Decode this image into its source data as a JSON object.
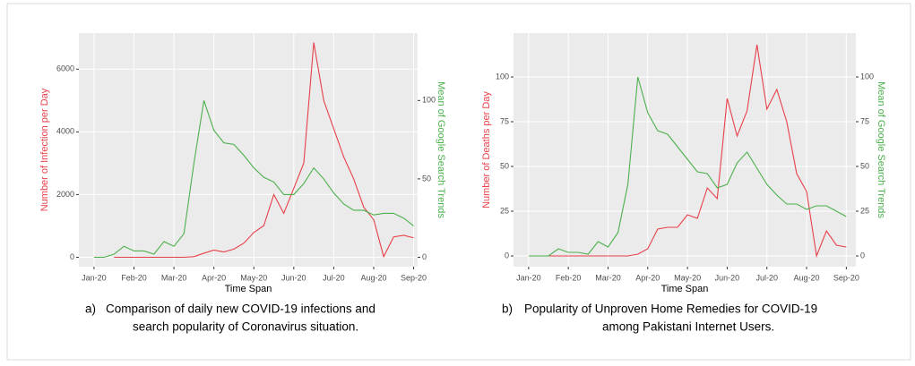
{
  "chart_data": [
    {
      "type": "line",
      "xlabel": "Time Span",
      "ylabel": "Number of Infection per Day",
      "y2label": "Mean of Google Search Trends",
      "caption_marker": "a)",
      "caption_lines": [
        "Comparison of daily new COVID-19 infections and",
        "search popularity of Coronavirus situation."
      ],
      "x": [
        0,
        0.25,
        0.5,
        0.75,
        1,
        1.25,
        1.5,
        1.75,
        2,
        2.25,
        2.5,
        2.75,
        3,
        3.25,
        3.5,
        3.75,
        4,
        4.25,
        4.5,
        4.75,
        5,
        5.25,
        5.5,
        5.75,
        6,
        6.25,
        6.5,
        6.75,
        7,
        7.25,
        7.5,
        7.75,
        8
      ],
      "series": [
        {
          "color": "#e8404a",
          "values": [
            null,
            null,
            0,
            0,
            0,
            0,
            0,
            0,
            0,
            0,
            20,
            130,
            230,
            170,
            260,
            450,
            790,
            1010,
            2000,
            1400,
            2200,
            3000,
            6850,
            5000,
            4100,
            3200,
            2500,
            1600,
            1200,
            20,
            650,
            700,
            620
          ]
        },
        {
          "color": "#4cb04c",
          "axis": "y2",
          "values": [
            0,
            0,
            2,
            7,
            4,
            4,
            2,
            10,
            7,
            15,
            60,
            100,
            81,
            73,
            72,
            65,
            57,
            51,
            48,
            40,
            40,
            47,
            57,
            50,
            41,
            34,
            30,
            30,
            27,
            28,
            28,
            25,
            20
          ]
        }
      ],
      "xlim": [
        -0.38,
        8.1
      ],
      "xticks": [
        {
          "value": 0,
          "label": "Jan-20"
        },
        {
          "value": 1,
          "label": "Feb-20"
        },
        {
          "value": 2,
          "label": "Mar-20"
        },
        {
          "value": 3,
          "label": "Apr-20"
        },
        {
          "value": 4,
          "label": "May-20"
        },
        {
          "value": 5,
          "label": "Jun-20"
        },
        {
          "value": 6,
          "label": "Jul-20"
        },
        {
          "value": 7,
          "label": "Aug-20"
        },
        {
          "value": 8,
          "label": "Sep-20"
        }
      ],
      "ylim": [
        -300,
        7150
      ],
      "yticks": [
        0,
        2000,
        4000,
        6000
      ],
      "y2lim": [
        -6,
        143
      ],
      "y2ticks": [
        0,
        50,
        100
      ],
      "grid": true
    },
    {
      "type": "line",
      "xlabel": "Time Span",
      "ylabel": "Number of Deaths per Day",
      "y2label": "Mean of Google Search Trends",
      "caption_marker": "b)",
      "caption_lines": [
        "Popularity of Unproven Home Remedies for COVID-19",
        "among Pakistani Internet Users."
      ],
      "x": [
        0,
        0.25,
        0.5,
        0.75,
        1,
        1.25,
        1.5,
        1.75,
        2,
        2.25,
        2.5,
        2.75,
        3,
        3.25,
        3.5,
        3.75,
        4,
        4.25,
        4.5,
        4.75,
        5,
        5.25,
        5.5,
        5.75,
        6,
        6.25,
        6.5,
        6.75,
        7,
        7.25,
        7.5,
        7.75,
        8
      ],
      "series": [
        {
          "color": "#e8404a",
          "values": [
            null,
            null,
            0,
            0,
            0,
            0,
            0,
            0,
            0,
            0,
            0,
            1,
            4,
            15,
            16,
            16,
            23,
            21,
            38,
            32,
            88,
            67,
            81,
            118,
            82,
            93,
            75,
            46,
            36,
            0,
            14,
            6,
            5
          ]
        },
        {
          "color": "#4cb04c",
          "axis": "y2",
          "values": [
            0,
            0,
            0,
            4,
            2,
            2,
            1,
            8,
            5,
            13,
            40,
            100,
            80,
            70,
            68,
            61,
            54,
            47,
            46,
            38,
            40,
            52,
            58,
            49,
            40,
            34,
            29,
            29,
            26,
            28,
            28,
            25,
            22
          ]
        }
      ],
      "xlim": [
        -0.38,
        8.24
      ],
      "xticks": [
        {
          "value": 0,
          "label": "Jan-20"
        },
        {
          "value": 1,
          "label": "Feb-20"
        },
        {
          "value": 2,
          "label": "Mar-20"
        },
        {
          "value": 3,
          "label": "Apr-20"
        },
        {
          "value": 4,
          "label": "May-20"
        },
        {
          "value": 5,
          "label": "Jun-20"
        },
        {
          "value": 6,
          "label": "Jul-20"
        },
        {
          "value": 7,
          "label": "Aug-20"
        },
        {
          "value": 8,
          "label": "Sep-20"
        }
      ],
      "ylim": [
        -6,
        124.5
      ],
      "yticks": [
        0,
        25,
        50,
        75,
        100
      ],
      "y2lim": [
        -6,
        124.5
      ],
      "y2ticks": [
        0,
        25,
        50,
        75,
        100
      ],
      "grid": true
    }
  ]
}
